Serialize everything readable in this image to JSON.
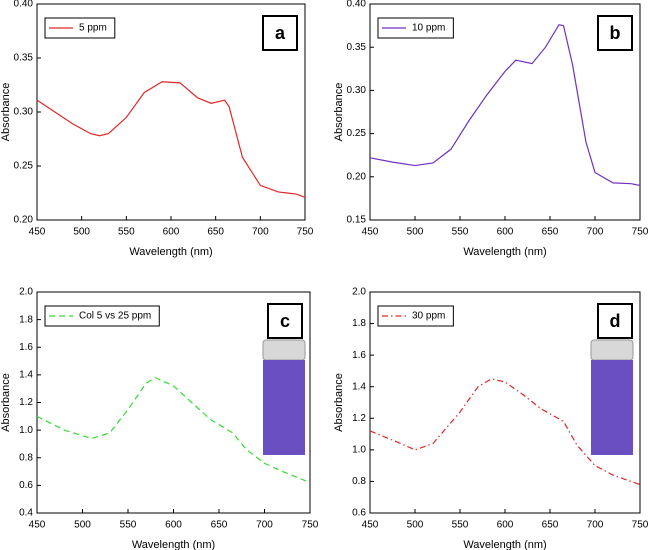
{
  "chart_data": [
    {
      "type": "line",
      "xlabel": "Wavelength (nm)",
      "ylabel": "Absorbance",
      "panel_label": "a",
      "xlim": [
        450,
        750
      ],
      "xticks": [
        450,
        500,
        550,
        600,
        650,
        700,
        750
      ],
      "ylim": [
        0.2,
        0.4
      ],
      "yticks": [
        {
          "value": 0.2,
          "label": "0.20"
        },
        0.25,
        {
          "value": 0.3,
          "label": "0.30"
        },
        0.35,
        {
          "value": 0.4,
          "label": "0.40"
        }
      ],
      "x": [
        450,
        470,
        490,
        510,
        520,
        530,
        550,
        570,
        590,
        610,
        630,
        645,
        660,
        665,
        680,
        700,
        720,
        730,
        740,
        750
      ],
      "series": [
        {
          "name": "5 ppm",
          "color": "#e02828",
          "dash": "solid",
          "values": [
            0.311,
            0.3,
            0.289,
            0.28,
            0.278,
            0.28,
            0.295,
            0.318,
            0.328,
            0.327,
            0.313,
            0.308,
            0.311,
            0.305,
            0.258,
            0.232,
            0.226,
            0.225,
            0.224,
            0.221
          ]
        }
      ]
    },
    {
      "type": "line",
      "xlabel": "Wavelength (nm)",
      "ylabel": "Absorbance",
      "panel_label": "b",
      "xlim": [
        450,
        750
      ],
      "xticks": [
        450,
        500,
        550,
        600,
        650,
        700,
        750
      ],
      "ylim": [
        0.15,
        0.4
      ],
      "yticks": [
        0.15,
        {
          "value": 0.2,
          "label": "0.20"
        },
        0.25,
        {
          "value": 0.3,
          "label": "0.30"
        },
        0.35,
        {
          "value": 0.4,
          "label": "0.40"
        }
      ],
      "x": [
        450,
        475,
        500,
        520,
        540,
        560,
        580,
        600,
        612,
        630,
        645,
        660,
        665,
        675,
        690,
        700,
        720,
        740,
        750
      ],
      "series": [
        {
          "name": "10 ppm",
          "color": "#7030c0",
          "dash": "solid",
          "values": [
            0.222,
            0.217,
            0.213,
            0.216,
            0.232,
            0.265,
            0.295,
            0.322,
            0.335,
            0.331,
            0.35,
            0.376,
            0.375,
            0.33,
            0.24,
            0.205,
            0.193,
            0.192,
            0.19
          ]
        }
      ]
    },
    {
      "type": "line",
      "xlabel": "Wavelength (nm)",
      "ylabel": "Absorbance",
      "panel_label": "c",
      "xlim": [
        450,
        750
      ],
      "xticks": [
        450,
        500,
        550,
        600,
        650,
        700,
        750
      ],
      "ylim": [
        0.4,
        2.0
      ],
      "yticks": [
        0.4,
        0.6,
        0.8,
        {
          "value": 1,
          "label": "1.0"
        },
        1.2,
        1.4,
        1.6,
        1.8,
        {
          "value": 2,
          "label": "2.0"
        }
      ],
      "x": [
        450,
        480,
        510,
        530,
        550,
        570,
        580,
        600,
        620,
        640,
        665,
        680,
        700,
        720,
        750
      ],
      "series": [
        {
          "name": "Col 5 vs 25 ppm",
          "color": "#33dd33",
          "dash": "dashed",
          "values": [
            1.1,
            1.0,
            0.94,
            0.98,
            1.15,
            1.34,
            1.38,
            1.32,
            1.2,
            1.08,
            0.98,
            0.86,
            0.76,
            0.7,
            0.62
          ]
        }
      ]
    },
    {
      "type": "line",
      "xlabel": "Wavelength (nm)",
      "ylabel": "Absorbance",
      "panel_label": "d",
      "xlim": [
        450,
        750
      ],
      "xticks": [
        450,
        500,
        550,
        600,
        650,
        700,
        750
      ],
      "ylim": [
        0.6,
        2.0
      ],
      "yticks": [
        0.6,
        0.8,
        {
          "value": 1,
          "label": "1.0"
        },
        1.2,
        1.4,
        1.6,
        1.8,
        {
          "value": 2,
          "label": "2.0"
        }
      ],
      "x": [
        450,
        480,
        500,
        520,
        550,
        570,
        585,
        600,
        620,
        640,
        665,
        680,
        700,
        720,
        750
      ],
      "series": [
        {
          "name": "30 ppm",
          "color": "#e02828",
          "dash": "dashdot",
          "values": [
            1.12,
            1.05,
            1.0,
            1.04,
            1.24,
            1.4,
            1.45,
            1.43,
            1.35,
            1.26,
            1.18,
            1.03,
            0.9,
            0.84,
            0.78
          ]
        }
      ]
    }
  ]
}
